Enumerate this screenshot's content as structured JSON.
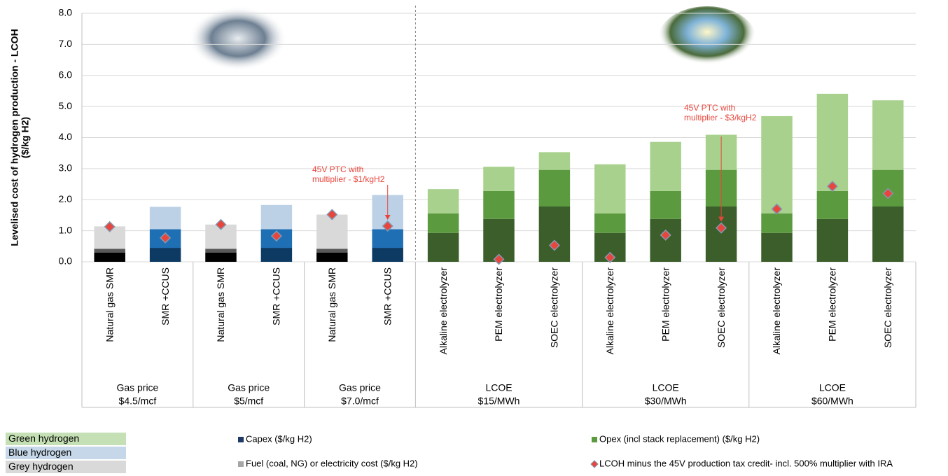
{
  "chart_data": {
    "type": "stacked-bar",
    "y_label": [
      "Levelised cost of hydrogen production - LCOH",
      "($/kg H2)"
    ],
    "ylim": [
      0,
      8
    ],
    "yticks": [
      {
        "value": 0,
        "label": "0.0"
      },
      {
        "value": 1,
        "label": "1.0"
      },
      {
        "value": 2,
        "label": "2.0"
      },
      {
        "value": 3,
        "label": "3.0"
      },
      {
        "value": 4,
        "label": "4.0"
      },
      {
        "value": 5,
        "label": "5.0"
      },
      {
        "value": 6,
        "label": "6.0"
      },
      {
        "value": 7,
        "label": "7.0"
      },
      {
        "value": 8,
        "label": "8.0"
      }
    ],
    "grid": true,
    "groups": [
      {
        "label": [
          "Gas price",
          "$4.5/mcf"
        ],
        "categories": [
          "Natural gas SMR",
          "SMR +CCUS"
        ]
      },
      {
        "label": [
          "Gas price",
          "$5/mcf"
        ],
        "categories": [
          "Natural gas SMR",
          "SMR +CCUS"
        ]
      },
      {
        "label": [
          "Gas price",
          "$7.0/mcf"
        ],
        "categories": [
          "Natural gas SMR",
          "SMR +CCUS"
        ]
      },
      {
        "label": [
          "LCOE",
          "$15/MWh"
        ],
        "categories": [
          "Alkaline electrolyzer",
          "PEM electrolyzer",
          "SOEC electrolyzer"
        ]
      },
      {
        "label": [
          "LCOE",
          "$30/MWh"
        ],
        "categories": [
          "Alkaline electrolyzer",
          "PEM electrolyzer",
          "SOEC electrolyzer"
        ]
      },
      {
        "label": [
          "LCOE",
          "$60/MWh"
        ],
        "categories": [
          "Alkaline electrolyzer",
          "PEM electrolyzer",
          "SOEC electrolyzer"
        ]
      }
    ],
    "series": [
      {
        "name": "Capex ($/kg H2)",
        "color": "#1f3864",
        "values": [
          0.3,
          0.45,
          0.3,
          0.45,
          0.3,
          0.45,
          0.93,
          1.38,
          1.78,
          0.93,
          1.38,
          1.78,
          0.93,
          1.38,
          1.78
        ],
        "colors": [
          "#000000",
          "#0d3a63",
          "#000000",
          "#0d3a63",
          "#000000",
          "#0d3a63",
          "#3b5e2b",
          "#3b5e2b",
          "#3b5e2b",
          "#3b5e2b",
          "#3b5e2b",
          "#3b5e2b",
          "#3b5e2b",
          "#3b5e2b",
          "#3b5e2b"
        ]
      },
      {
        "name": "Opex (incl stack replacement) ($/kg H2)",
        "color": "#5b9a3f",
        "values": [
          0.12,
          0.6,
          0.12,
          0.6,
          0.12,
          0.6,
          0.63,
          0.9,
          1.18,
          0.63,
          0.9,
          1.18,
          0.63,
          0.9,
          1.18
        ],
        "colors": [
          "#595959",
          "#1f6fb4",
          "#595959",
          "#1f6fb4",
          "#595959",
          "#1f6fb4",
          "#5b9a3f",
          "#5b9a3f",
          "#5b9a3f",
          "#5b9a3f",
          "#5b9a3f",
          "#5b9a3f",
          "#5b9a3f",
          "#5b9a3f",
          "#5b9a3f"
        ]
      },
      {
        "name": "Fuel (coal, NG) or electricity cost ($/kg H2)",
        "color": "#a6a6a6",
        "values": [
          0.72,
          0.72,
          0.78,
          0.78,
          1.1,
          1.1,
          0.78,
          0.78,
          0.57,
          1.58,
          1.58,
          1.13,
          3.13,
          3.13,
          2.24
        ],
        "colors": [
          "#d9d9d9",
          "#bdd1e6",
          "#d9d9d9",
          "#bdd1e6",
          "#d9d9d9",
          "#bdd1e6",
          "#a9d18e",
          "#a9d18e",
          "#a9d18e",
          "#a9d18e",
          "#a9d18e",
          "#a9d18e",
          "#a9d18e",
          "#a9d18e",
          "#a9d18e"
        ]
      },
      {
        "name": "LCOH minus the 45V production tax credit- incl. 500% multiplier with IRA",
        "color": "#e8463c",
        "marker": "diamond",
        "values": [
          1.13,
          0.77,
          1.2,
          0.83,
          1.52,
          1.15,
          null,
          0.08,
          0.53,
          0.14,
          0.86,
          1.09,
          1.7,
          2.43,
          2.2
        ]
      }
    ],
    "annotations": [
      {
        "text": [
          "45V PTC with",
          "multiplier - $1/kgH2"
        ],
        "color": "#e8463c"
      },
      {
        "text": [
          "45V PTC with",
          "multiplier - $3/kgH2"
        ],
        "color": "#e8463c"
      }
    ],
    "hydrogen_types": [
      {
        "name": "Green hydrogen",
        "color": "#c5e0b4"
      },
      {
        "name": "Blue hydrogen",
        "color": "#c5d7e8"
      },
      {
        "name": "Grey hydrogen",
        "color": "#d9d9d9"
      }
    ]
  }
}
